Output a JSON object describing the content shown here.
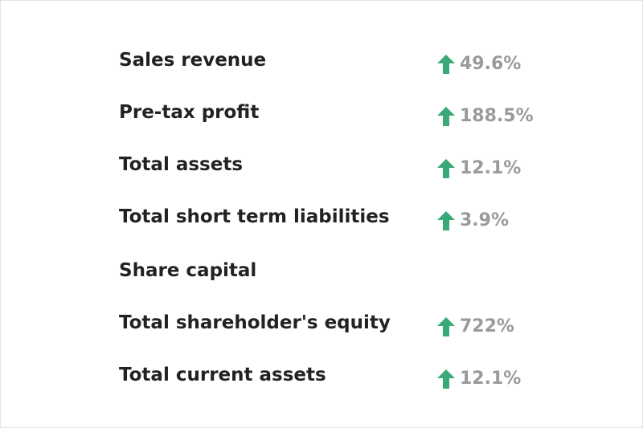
{
  "colors": {
    "accent_up": "#3aa978",
    "label": "#222222",
    "value": "#9a9a9a"
  },
  "metrics": [
    {
      "label": "Sales revenue",
      "change": "49.6%",
      "icon": "arrow-up-icon"
    },
    {
      "label": "Pre-tax profit",
      "change": "188.5%",
      "icon": "arrow-up-icon"
    },
    {
      "label": "Total assets",
      "change": "12.1%",
      "icon": "arrow-up-icon"
    },
    {
      "label": "Total short term liabilities",
      "change": "3.9%",
      "icon": "arrow-up-icon"
    },
    {
      "label": "Share capital",
      "change": "",
      "icon": ""
    },
    {
      "label": "Total shareholder's equity",
      "change": "722%",
      "icon": "arrow-up-icon"
    },
    {
      "label": "Total current assets",
      "change": "12.1%",
      "icon": "arrow-up-icon"
    }
  ]
}
